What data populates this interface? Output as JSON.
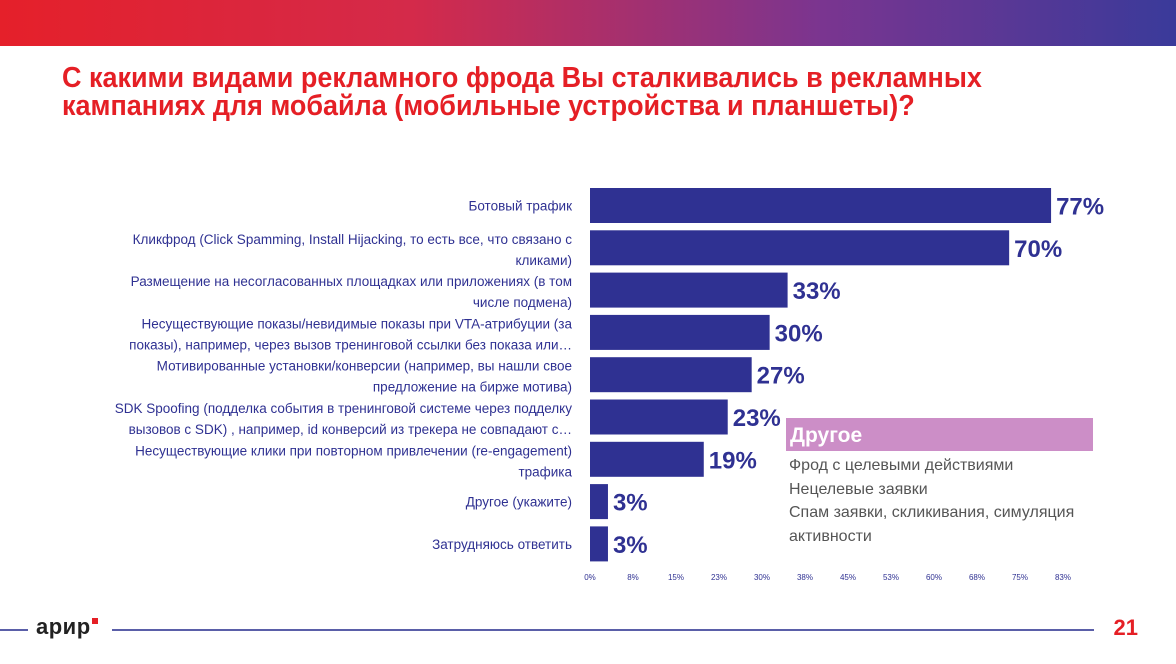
{
  "slide": {
    "title_line1": "С какими видами рекламного фрода Вы сталкивались в рекламных",
    "title_line2": "кампаниях для мобайла (мобильные устройства и планшеты)?",
    "brand": "арир",
    "page_number": "21",
    "colors": {
      "title": "#e51f25",
      "bar": "#2f3192",
      "other_header": "#cc8ec7"
    }
  },
  "chart_data": {
    "type": "bar",
    "orientation": "horizontal",
    "title": "С какими видами рекламного фрода Вы сталкивались в рекламных кампаниях для мобайла (мобильные устройства и планшеты)?",
    "xlabel": "",
    "ylabel": "",
    "xlim": [
      0,
      83
    ],
    "grid": false,
    "categories": [
      [
        "Ботовый трафик"
      ],
      [
        "Кликфрод (Click Spamming, Install Hijacking, то есть все, что связано с",
        "кликами)"
      ],
      [
        "Размещение на несогласованных площадках или приложениях (в том",
        "числе подмена)"
      ],
      [
        "Несуществующие показы/невидимые показы при VTA-атрибуции (за",
        "показы), например, через вызов тренинговой ссылки без показа или…"
      ],
      [
        "Мотивированные установки/конверсии (например, вы нашли свое",
        "предложение на бирже мотива)"
      ],
      [
        "SDK Spoofing (подделка события в тренинговой системе через подделку",
        "вызовов с SDK) , например, id конверсий из трекера не совпадают с…"
      ],
      [
        "Несуществующие клики при повторном привлечении (re-engagement)",
        "трафика"
      ],
      [
        "Другое (укажите)"
      ],
      [
        "Затрудняюсь ответить"
      ]
    ],
    "values": [
      77,
      70,
      33,
      30,
      27,
      23,
      19,
      3,
      3
    ],
    "value_labels": [
      "77%",
      "70%",
      "33%",
      "30%",
      "27%",
      "23%",
      "19%",
      "3%",
      "3%"
    ],
    "x_ticks": [
      "0%",
      "8%",
      "15%",
      "23%",
      "30%",
      "38%",
      "45%",
      "53%",
      "60%",
      "68%",
      "75%",
      "83%"
    ]
  },
  "other_box": {
    "header": "Другое",
    "items": [
      "Фрод с целевыми действиями",
      "Нецелевые заявки",
      "Спам заявки, скликивания, симуляция",
      "активности"
    ]
  }
}
